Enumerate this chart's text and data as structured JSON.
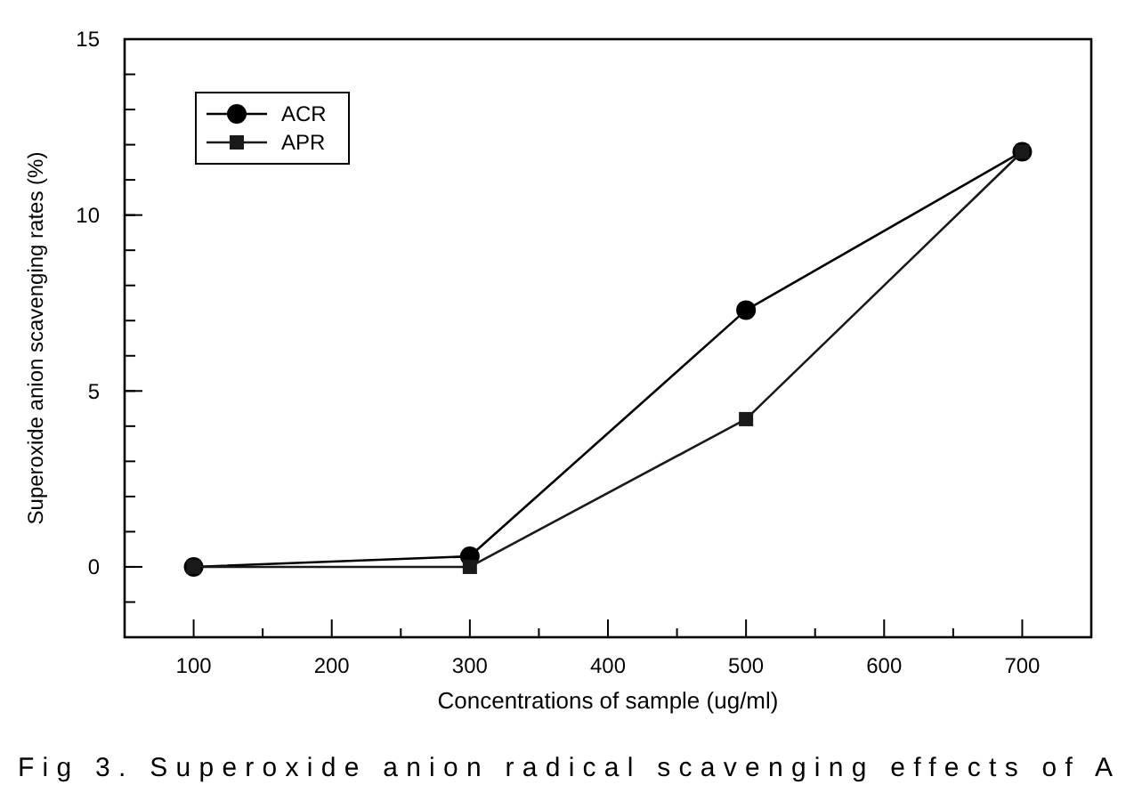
{
  "chart_data": {
    "type": "line",
    "xlabel": "Concentrations of sample (ug/ml)",
    "ylabel": "Superoxide anion scavenging rates (%)",
    "x": [
      100,
      300,
      500,
      700
    ],
    "series": [
      {
        "name": "ACR",
        "color": "#000000",
        "marker": "circle",
        "values": [
          0,
          0.3,
          7.3,
          11.8
        ]
      },
      {
        "name": "APR",
        "color": "#1a1a1a",
        "marker": "square",
        "values": [
          0,
          0,
          4.2,
          11.8
        ]
      }
    ],
    "xlim": [
      50,
      750
    ],
    "xticks": [
      100,
      200,
      300,
      400,
      500,
      600,
      700
    ],
    "ylim": [
      -2,
      15
    ],
    "yticks": [
      0,
      5,
      10,
      15
    ],
    "legend": "top left",
    "line_style": "solid",
    "annotations": [
      "Fig 3. Superoxide anion radical scavenging effects of A"
    ]
  }
}
